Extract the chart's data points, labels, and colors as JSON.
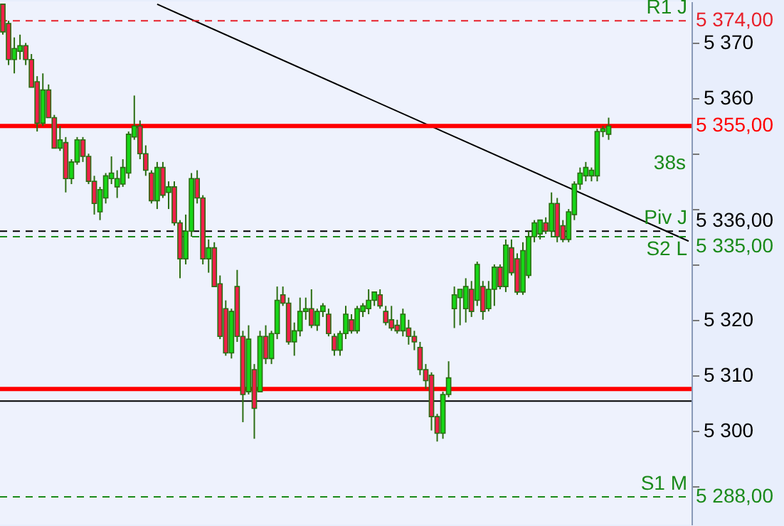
{
  "chart_data": {
    "type": "candlestick",
    "categories": [
      null,
      null,
      null,
      null,
      null,
      null,
      null,
      null,
      null,
      null,
      null,
      null,
      null,
      null,
      null,
      null,
      null,
      null,
      null,
      null,
      null,
      null,
      null,
      null,
      null,
      null,
      null,
      null,
      null,
      null,
      null,
      null,
      null,
      null,
      null,
      null,
      null,
      null,
      null,
      null,
      null,
      null,
      null,
      null,
      null,
      null,
      null,
      null,
      null,
      null,
      null,
      null,
      null,
      null,
      null,
      null,
      null,
      null,
      null,
      null,
      null,
      null,
      null,
      null,
      null,
      null,
      null,
      null,
      null,
      null,
      null,
      null,
      null,
      null,
      null,
      null,
      null,
      null,
      null,
      null,
      null,
      null,
      null,
      null,
      null,
      null,
      null,
      null,
      null,
      null,
      null,
      null,
      null,
      null,
      null,
      null,
      null,
      null,
      null,
      null,
      null,
      null,
      null,
      null,
      null,
      null,
      null,
      null,
      null,
      null,
      null,
      null,
      null,
      null,
      null,
      null,
      null,
      null,
      null,
      null,
      null
    ],
    "ohlc": [
      [
        5377,
        5377,
        5371.5,
        5372
      ],
      [
        5373.5,
        5374,
        5366,
        5367
      ],
      [
        5367,
        5371,
        5364.5,
        5369
      ],
      [
        5368.5,
        5371.5,
        5367,
        5369.5
      ],
      [
        5369.5,
        5370,
        5366,
        5367
      ],
      [
        5367,
        5368,
        5362,
        5362
      ],
      [
        5363,
        5364,
        5354,
        5355.5
      ],
      [
        5355.5,
        5364.5,
        5355,
        5361.5
      ],
      [
        5361.5,
        5362.5,
        5356.5,
        5356.5
      ],
      [
        5356.5,
        5357,
        5351,
        5351
      ],
      [
        5351,
        5355,
        5350.5,
        5352.5
      ],
      [
        5352,
        5353,
        5343,
        5345.5
      ],
      [
        5345.5,
        5349,
        5344.5,
        5348.5
      ],
      [
        5348.5,
        5353,
        5348,
        5352.5
      ],
      [
        5352.5,
        5353,
        5348.5,
        5349.5
      ],
      [
        5349.5,
        5350,
        5344.5,
        5345
      ],
      [
        5345,
        5346,
        5339,
        5341
      ],
      [
        5339.5,
        5344,
        5338,
        5343.5
      ],
      [
        5342,
        5346.5,
        5341,
        5346
      ],
      [
        5345.5,
        5349.5,
        5344.5,
        5346.5
      ],
      [
        5344,
        5347,
        5342,
        5345.5
      ],
      [
        5344.5,
        5349,
        5344,
        5347.5
      ],
      [
        5346.5,
        5354,
        5345.5,
        5353.5
      ],
      [
        5353,
        5360.5,
        5352.5,
        5355
      ],
      [
        5355,
        5356,
        5349,
        5350
      ],
      [
        5350,
        5351.5,
        5346,
        5347
      ],
      [
        5346.5,
        5347,
        5341,
        5341.5
      ],
      [
        5341.5,
        5348.5,
        5340,
        5347.5
      ],
      [
        5347.5,
        5348.5,
        5342,
        5342.5
      ],
      [
        5343,
        5345,
        5340,
        5344
      ],
      [
        5344,
        5345,
        5337,
        5337.5
      ],
      [
        5337.5,
        5338,
        5327.5,
        5331
      ],
      [
        5331,
        5339,
        5330,
        5336
      ],
      [
        5336,
        5346.5,
        5335,
        5345.5
      ],
      [
        5345.5,
        5347,
        5341,
        5342
      ],
      [
        5342,
        5342.5,
        5330,
        5331
      ],
      [
        5331,
        5334.5,
        5328.5,
        5333
      ],
      [
        5333,
        5334,
        5326,
        5326
      ],
      [
        5326.5,
        5328,
        5316.5,
        5317
      ],
      [
        5322,
        5323.5,
        5313.5,
        5314
      ],
      [
        5314,
        5322,
        5313,
        5321.5
      ],
      [
        5326,
        5329,
        5316,
        5317
      ],
      [
        5317,
        5318,
        5301.5,
        5306.5
      ],
      [
        5307,
        5319,
        5306.5,
        5316.5
      ],
      [
        5311,
        5312,
        5298.5,
        5304
      ],
      [
        5307,
        5318,
        5307,
        5317
      ],
      [
        5317,
        5319,
        5312,
        5313
      ],
      [
        5313,
        5318,
        5312,
        5317.5
      ],
      [
        5317.5,
        5326,
        5316.5,
        5323.5
      ],
      [
        5324.5,
        5326,
        5322.5,
        5323
      ],
      [
        5323,
        5324,
        5315.5,
        5316
      ],
      [
        5316,
        5319.5,
        5313.5,
        5318
      ],
      [
        5318,
        5324,
        5317,
        5321.5
      ],
      [
        5321.5,
        5324,
        5320,
        5322
      ],
      [
        5322,
        5325.5,
        5318.5,
        5319
      ],
      [
        5319,
        5322,
        5318,
        5321.5
      ],
      [
        5321.5,
        5323,
        5320.5,
        5322.5
      ],
      [
        5321,
        5322,
        5317,
        5317.5
      ],
      [
        5317,
        5317.5,
        5313.5,
        5314.5
      ],
      [
        5314.5,
        5318,
        5313.5,
        5317.5
      ],
      [
        5317.5,
        5322.5,
        5316.5,
        5321
      ],
      [
        5320,
        5321,
        5317.5,
        5318
      ],
      [
        5318,
        5322.5,
        5317.5,
        5322
      ],
      [
        5321.5,
        5323,
        5320.5,
        5322.5
      ],
      [
        5322,
        5325.5,
        5321,
        5323.5
      ],
      [
        5323.5,
        5325,
        5322.5,
        5325
      ],
      [
        5324.5,
        5325.5,
        5322,
        5322.5
      ],
      [
        5321.5,
        5322.5,
        5319,
        5319.5
      ],
      [
        5320,
        5322.5,
        5318,
        5318.5
      ],
      [
        5319,
        5320,
        5317.5,
        5318
      ],
      [
        5318,
        5322,
        5317,
        5321
      ],
      [
        5318.5,
        5320,
        5315.5,
        5317
      ],
      [
        5317,
        5318,
        5314.5,
        5316
      ],
      [
        5315,
        5316,
        5310,
        5311
      ],
      [
        5311,
        5312,
        5307.5,
        5309
      ],
      [
        5310,
        5310.5,
        5300,
        5302.5
      ],
      [
        5302.5,
        5303,
        5298,
        5299.5
      ],
      [
        5299.5,
        5307,
        5298.5,
        5306.5
      ],
      [
        5306.5,
        5312.5,
        5306,
        5309.5
      ],
      [
        5322,
        5326,
        5318.5,
        5324.5
      ],
      [
        5324,
        5325.5,
        5319,
        5325.5
      ],
      [
        5322,
        5327.5,
        5319.5,
        5326
      ],
      [
        5325.5,
        5327,
        5320.5,
        5321.5
      ],
      [
        5323.5,
        5330.5,
        5322.5,
        5330
      ],
      [
        5326,
        5327,
        5320,
        5321.5
      ],
      [
        5322,
        5327,
        5321.5,
        5325.5
      ],
      [
        5325.5,
        5330,
        5322.5,
        5329.5
      ],
      [
        5329.5,
        5330,
        5325.5,
        5326
      ],
      [
        5326,
        5334.5,
        5325,
        5333.5
      ],
      [
        5333,
        5334.5,
        5328,
        5328.5
      ],
      [
        5331,
        5332,
        5324.5,
        5325
      ],
      [
        5325,
        5334,
        5324.5,
        5332.5
      ],
      [
        5328,
        5336,
        5327.5,
        5335
      ],
      [
        5335,
        5338,
        5334,
        5337.5
      ],
      [
        5335.5,
        5338,
        5334.5,
        5338
      ],
      [
        5337.5,
        5338.5,
        5335.5,
        5336
      ],
      [
        5336,
        5343,
        5335,
        5341
      ],
      [
        5341,
        5342,
        5334,
        5335
      ],
      [
        5337,
        5338,
        5334,
        5334.5
      ],
      [
        5334.5,
        5340,
        5334,
        5339.5
      ],
      [
        5339,
        5345,
        5338,
        5344.5
      ],
      [
        5344.5,
        5347.5,
        5343.5,
        5346.5
      ],
      [
        5346,
        5348.5,
        5345,
        5347.5
      ],
      [
        5346,
        5347.5,
        5345,
        5347
      ],
      [
        5346,
        5354.5,
        5345,
        5354
      ],
      [
        5354,
        5355,
        5353,
        5354.5
      ],
      [
        5353.5,
        5356.5,
        5352.5,
        5355
      ],
      null,
      null,
      null,
      null,
      null,
      null,
      null,
      null,
      null,
      null,
      null,
      null,
      null,
      null
    ],
    "series": [
      {
        "type": "line",
        "color": "#000000",
        "values": [
          null,
          null,
          null,
          null,
          null,
          null,
          null,
          null,
          null,
          null,
          null,
          null,
          null,
          null,
          null,
          null,
          null,
          null,
          null,
          null,
          null,
          null,
          null,
          null,
          null,
          null,
          null,
          5377,
          null,
          null,
          null,
          null,
          null,
          null,
          null,
          null,
          null,
          null,
          null,
          null,
          null,
          null,
          null,
          null,
          null,
          null,
          null,
          null,
          null,
          null,
          null,
          null,
          null,
          null,
          null,
          null,
          null,
          null,
          null,
          null,
          null,
          null,
          null,
          null,
          null,
          null,
          null,
          null,
          null,
          null,
          null,
          null,
          null,
          null,
          null,
          null,
          null,
          null,
          null,
          null,
          null,
          null,
          null,
          null,
          null,
          null,
          null,
          null,
          null,
          null,
          null,
          null,
          null,
          null,
          null,
          null,
          null,
          null,
          null,
          null,
          null,
          null,
          null,
          null,
          null,
          null,
          null,
          null,
          null,
          null,
          null,
          null,
          null,
          null,
          null,
          null,
          null,
          null,
          null,
          null,
          5334.2
        ]
      }
    ],
    "ylim": [
      5283,
      5377.5
    ],
    "yticks": [
      {
        "value": 5290,
        "label": null
      },
      {
        "value": 5300,
        "label": "5 300"
      },
      {
        "value": 5310,
        "label": "5 310"
      },
      {
        "value": 5320,
        "label": "5 320"
      },
      {
        "value": 5330,
        "label": null
      },
      {
        "value": 5340,
        "label": null
      },
      {
        "value": 5350,
        "label": null
      },
      {
        "value": 5360,
        "label": "5 360"
      },
      {
        "value": 5370,
        "label": "5 370"
      }
    ],
    "tick_labels": "y",
    "grid": false,
    "ref_lines": [
      {
        "axis": "y",
        "value": 5374,
        "label": "5 374,00",
        "color": "#e8202a",
        "line_style": "dashed"
      },
      {
        "axis": "y",
        "value": 5355,
        "label": "5 355,00",
        "color": "#ff0000",
        "line_style": "solid"
      },
      {
        "axis": "y",
        "value": 5336,
        "label": "5 336,00",
        "color": "#000000",
        "line_style": "dashed"
      },
      {
        "axis": "y",
        "value": 5335,
        "label": "5 335,00",
        "color": "#1a8a1a",
        "line_style": "dashed"
      },
      {
        "axis": "y",
        "value": 5307.5,
        "label": null,
        "color": "#ff0000",
        "line_style": "solid"
      },
      {
        "axis": "y",
        "value": 5305.3,
        "label": null,
        "color": "#000000",
        "line_style": "solid"
      },
      {
        "axis": "y",
        "value": 5288,
        "label": "5 288,00",
        "color": "#1a8a1a",
        "line_style": "dashed"
      }
    ],
    "annotations": [
      {
        "text": "R1 J",
        "y": 5374
      },
      {
        "text": "Piv J",
        "y": 5336
      },
      {
        "text": "S2 L",
        "y": 5335
      },
      {
        "text": "S1 M",
        "y": 5288
      },
      "38s"
    ]
  }
}
